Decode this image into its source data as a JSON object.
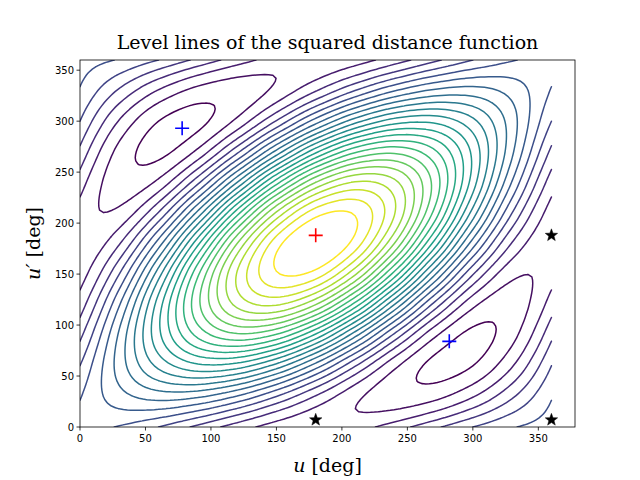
{
  "chart_data": {
    "type": "contour",
    "title": "Level lines of the squared distance function",
    "x_label": "u [deg]",
    "y_label": "u′ [deg]",
    "xlim": [
      0,
      378
    ],
    "ylim": [
      0,
      360
    ],
    "xticks": [
      0,
      50,
      100,
      150,
      200,
      250,
      300,
      350
    ],
    "yticks": [
      0,
      50,
      100,
      150,
      200,
      250,
      300,
      350
    ],
    "grid": false,
    "x": [
      0,
      30,
      60,
      90,
      120,
      150,
      180,
      210,
      240,
      270,
      300,
      330,
      360
    ],
    "y": [
      0,
      30,
      60,
      90,
      120,
      150,
      180,
      210,
      240,
      270,
      300,
      330,
      360
    ],
    "z": [
      [
        3,
        2.87,
        2.5,
        2,
        1.5,
        1.13,
        1,
        1.13,
        1.5,
        2,
        2.5,
        2.87,
        3
      ],
      [
        2.87,
        3.54,
        3.87,
        3.77,
        3.27,
        2.5,
        1.67,
        1,
        0.67,
        0.77,
        1.27,
        2.04,
        2.87
      ],
      [
        2.5,
        3.87,
        5,
        5.6,
        5.5,
        4.73,
        3.5,
        2.13,
        1,
        0.4,
        0.5,
        1.27,
        2.5
      ],
      [
        2,
        3.77,
        5.6,
        7,
        7.6,
        7.23,
        6,
        4.23,
        2.4,
        1,
        0.4,
        0.77,
        2
      ],
      [
        1.5,
        3.27,
        5.5,
        7.6,
        9,
        9.33,
        8.5,
        6.73,
        4.5,
        2.4,
        1,
        0.67,
        1.5
      ],
      [
        1.13,
        2.5,
        4.73,
        7.23,
        9.33,
        10.46,
        10.33,
        8.96,
        6.73,
        4.23,
        2.13,
        1,
        1.13
      ],
      [
        1,
        1.67,
        3.5,
        6,
        8.5,
        10.33,
        11,
        10.33,
        8.5,
        6,
        3.5,
        1.67,
        1
      ],
      [
        1.13,
        1,
        2.13,
        4.23,
        6.73,
        8.96,
        10.33,
        10.46,
        9.33,
        7.23,
        4.73,
        2.5,
        1.13
      ],
      [
        1.5,
        0.67,
        1,
        2.4,
        4.5,
        6.73,
        8.5,
        9.33,
        9,
        7.6,
        5.5,
        3.27,
        1.5
      ],
      [
        2,
        0.77,
        0.4,
        1,
        2.4,
        4.23,
        6,
        7.23,
        7.6,
        7,
        5.6,
        3.77,
        2
      ],
      [
        2.5,
        1.27,
        0.5,
        0.4,
        1,
        2.13,
        3.5,
        4.73,
        5.5,
        5.6,
        5,
        3.87,
        2.5
      ],
      [
        2.87,
        2.04,
        1.27,
        0.77,
        0.67,
        1,
        1.67,
        2.5,
        3.27,
        3.77,
        3.87,
        3.54,
        2.87
      ],
      [
        3,
        2.87,
        2.5,
        2,
        1.5,
        1.13,
        1,
        1.13,
        1.5,
        2,
        2.5,
        2.87,
        3
      ]
    ],
    "levels": [
      0.5,
      0.9,
      1.3,
      1.7,
      2.1,
      2.5,
      2.9,
      3.3,
      3.7,
      4.1,
      4.5,
      4.9,
      5.3,
      5.7,
      6.1,
      6.5,
      6.9,
      7.3,
      7.7,
      8.1,
      8.5,
      8.9,
      9.3,
      9.7,
      10.1,
      10.5
    ],
    "series": [
      {
        "type": "scatter",
        "marker": "plus",
        "color": "#ff0000",
        "x": [
          180
        ],
        "values": [
          188
        ]
      },
      {
        "type": "scatter",
        "marker": "plus",
        "color": "#0000ff",
        "x": [
          78,
          282
        ],
        "values": [
          293,
          84
        ]
      },
      {
        "type": "scatter",
        "marker": "star",
        "color": "#000000",
        "x": [
          180,
          360,
          360
        ],
        "values": [
          7,
          7,
          188
        ]
      }
    ]
  }
}
